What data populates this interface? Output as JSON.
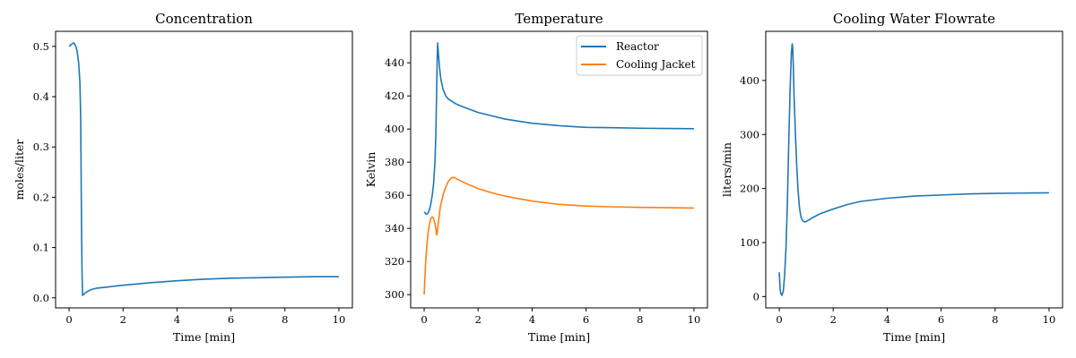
{
  "chart_data": [
    {
      "type": "line",
      "title": "Concentration",
      "xlabel": "Time [min]",
      "ylabel": "moles/liter",
      "xlim": [
        -0.5,
        10.5
      ],
      "ylim": [
        -0.02,
        0.53
      ],
      "xticks": [
        0,
        2,
        4,
        6,
        8,
        10
      ],
      "xtick_labels": [
        "0",
        "2",
        "4",
        "6",
        "8",
        "10"
      ],
      "yticks": [
        0.0,
        0.1,
        0.2,
        0.3,
        0.4,
        0.5
      ],
      "ytick_labels": [
        "0.0",
        "0.1",
        "0.2",
        "0.3",
        "0.4",
        "0.5"
      ],
      "legend": null,
      "grid": false,
      "series": [
        {
          "color": "#1f77b4",
          "x": [
            0,
            0.1,
            0.18,
            0.25,
            0.3,
            0.35,
            0.4,
            0.43,
            0.46,
            0.48,
            0.5,
            0.55,
            0.6,
            0.7,
            0.8,
            1.0,
            1.5,
            2,
            3,
            4,
            5,
            6,
            7,
            8,
            9,
            10
          ],
          "y": [
            0.5,
            0.505,
            0.507,
            0.5,
            0.49,
            0.47,
            0.43,
            0.36,
            0.15,
            0.05,
            0.005,
            0.007,
            0.01,
            0.013,
            0.016,
            0.019,
            0.022,
            0.025,
            0.03,
            0.034,
            0.037,
            0.039,
            0.04,
            0.041,
            0.042,
            0.042
          ]
        }
      ]
    },
    {
      "type": "line",
      "title": "Temperature",
      "xlabel": "Time [min]",
      "ylabel": "Kelvin",
      "xlim": [
        -0.5,
        10.5
      ],
      "ylim": [
        292,
        459
      ],
      "xticks": [
        0,
        2,
        4,
        6,
        8,
        10
      ],
      "xtick_labels": [
        "0",
        "2",
        "4",
        "6",
        "8",
        "10"
      ],
      "yticks": [
        300,
        320,
        340,
        360,
        380,
        400,
        420,
        440
      ],
      "ytick_labels": [
        "300",
        "320",
        "340",
        "360",
        "380",
        "400",
        "420",
        "440"
      ],
      "legend": "top-right",
      "grid": false,
      "series": [
        {
          "name": "Reactor",
          "color": "#1f77b4",
          "x": [
            0,
            0.05,
            0.1,
            0.15,
            0.2,
            0.25,
            0.3,
            0.35,
            0.4,
            0.43,
            0.46,
            0.48,
            0.5,
            0.53,
            0.57,
            0.62,
            0.7,
            0.8,
            0.9,
            1.0,
            1.2,
            1.5,
            2,
            2.5,
            3,
            4,
            5,
            6,
            7,
            8,
            9,
            10
          ],
          "y": [
            350,
            349,
            348.5,
            349.5,
            351.5,
            355,
            360,
            367,
            380,
            395,
            420,
            440,
            452,
            445,
            437,
            430,
            424,
            420,
            418,
            417,
            415,
            413,
            410,
            408,
            406,
            403.5,
            402,
            401,
            400.8,
            400.5,
            400.3,
            400.2
          ]
        },
        {
          "name": "Cooling Jacket",
          "color": "#ff7f0e",
          "x": [
            0,
            0.05,
            0.1,
            0.15,
            0.2,
            0.25,
            0.3,
            0.35,
            0.4,
            0.43,
            0.46,
            0.48,
            0.52,
            0.6,
            0.7,
            0.8,
            0.9,
            1.0,
            1.1,
            1.2,
            1.5,
            2,
            2.5,
            3,
            4,
            5,
            6,
            7,
            8,
            9,
            10
          ],
          "y": [
            300,
            318,
            330,
            338,
            343,
            346,
            347,
            346,
            343,
            340,
            336,
            337,
            343,
            353,
            360,
            365,
            368.5,
            370.5,
            370.8,
            370,
            367.5,
            364,
            361.5,
            359.5,
            356.5,
            354.5,
            353.5,
            353,
            352.7,
            352.5,
            352.3
          ]
        }
      ]
    },
    {
      "type": "line",
      "title": "Cooling Water Flowrate",
      "xlabel": "Time [min]",
      "ylabel": "liters/min",
      "xlim": [
        -0.5,
        10.5
      ],
      "ylim": [
        -21,
        491
      ],
      "xticks": [
        0,
        2,
        4,
        6,
        8,
        10
      ],
      "xtick_labels": [
        "0",
        "2",
        "4",
        "6",
        "8",
        "10"
      ],
      "yticks": [
        0,
        100,
        200,
        300,
        400
      ],
      "ytick_labels": [
        "0",
        "100",
        "200",
        "300",
        "400"
      ],
      "legend": null,
      "grid": false,
      "series": [
        {
          "color": "#1f77b4",
          "x": [
            0,
            0.03,
            0.06,
            0.1,
            0.15,
            0.2,
            0.25,
            0.3,
            0.35,
            0.4,
            0.45,
            0.48,
            0.5,
            0.52,
            0.55,
            0.6,
            0.65,
            0.7,
            0.75,
            0.8,
            0.85,
            0.9,
            0.95,
            1.0,
            1.1,
            1.2,
            1.5,
            2,
            2.5,
            3,
            4,
            5,
            6,
            7,
            8,
            9,
            10
          ],
          "y": [
            45,
            15,
            5,
            2,
            10,
            40,
            90,
            170,
            280,
            380,
            450,
            468,
            460,
            430,
            370,
            300,
            240,
            195,
            165,
            148,
            142,
            139,
            138,
            139,
            142,
            145,
            153,
            162,
            170,
            176,
            182,
            186,
            188,
            190,
            191,
            191.5,
            192
          ]
        }
      ]
    }
  ]
}
